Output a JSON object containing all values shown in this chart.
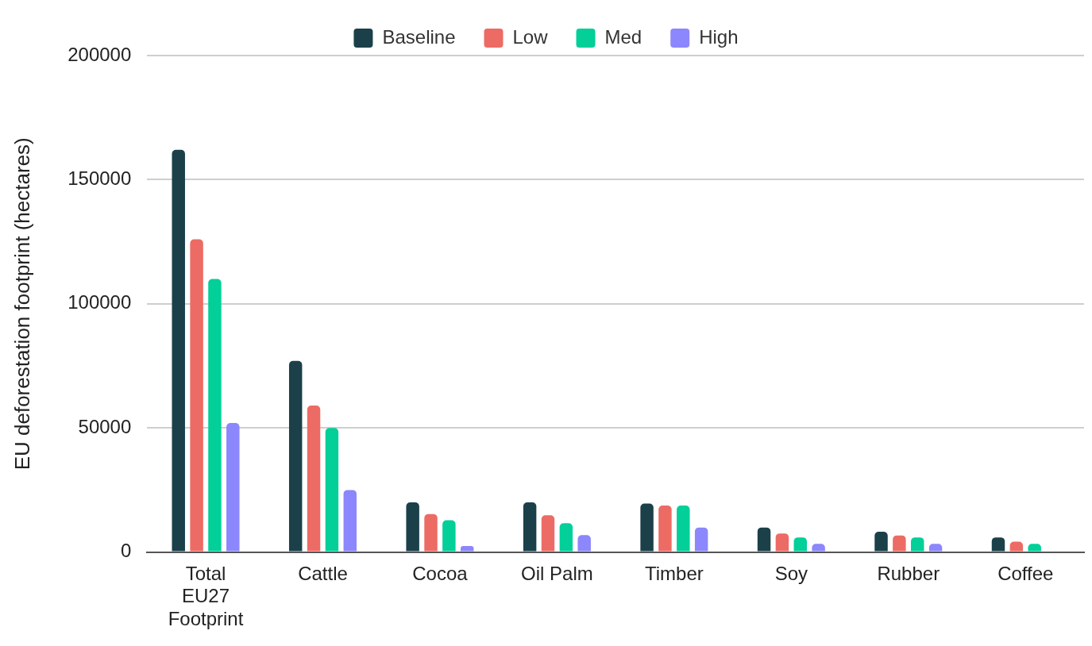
{
  "chart_data": {
    "type": "bar",
    "ylabel": "EU deforestation footprint (hectares)",
    "categories": [
      "Total EU27 Footprint",
      "Cattle",
      "Cocoa",
      "Oil Palm",
      "Timber",
      "Soy",
      "Rubber",
      "Coffee"
    ],
    "series": [
      {
        "name": "Baseline",
        "color": "#1b404a",
        "values": [
          162000,
          77000,
          20000,
          20000,
          19500,
          9900,
          8200,
          5900
        ]
      },
      {
        "name": "Low",
        "color": "#ed6b65",
        "values": [
          126000,
          59000,
          15300,
          14800,
          18700,
          7500,
          6700,
          4200
        ]
      },
      {
        "name": "Med",
        "color": "#03cf99",
        "values": [
          110000,
          50000,
          12800,
          11600,
          18700,
          5900,
          5900,
          3300
        ]
      },
      {
        "name": "High",
        "color": "#8c87fc",
        "values": [
          52000,
          25000,
          2400,
          6800,
          9900,
          3300,
          3300,
          null
        ]
      }
    ],
    "ylim": [
      0,
      200000
    ],
    "yticks": [
      0,
      50000,
      100000,
      150000,
      200000
    ],
    "grid": "y",
    "legend": "top"
  }
}
